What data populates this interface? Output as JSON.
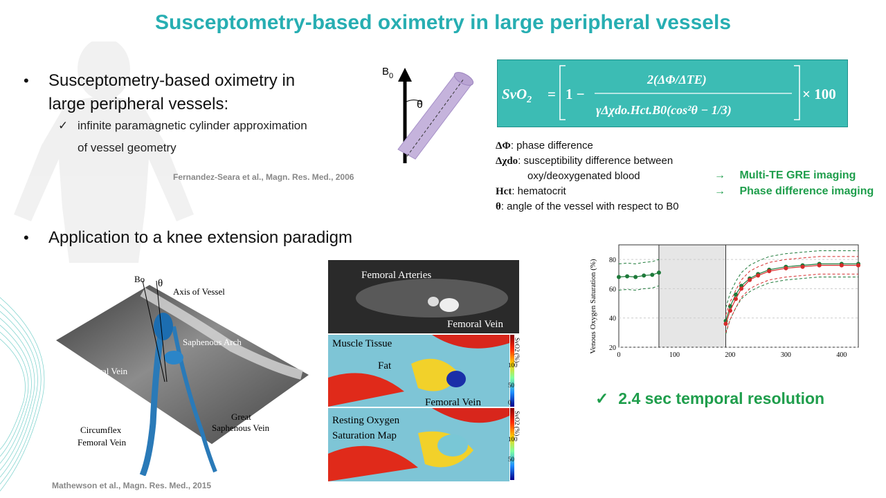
{
  "title": "Susceptometry-based oximetry in large peripheral vessels",
  "bullets": [
    {
      "line1": "Susceptometry-based  oximetry in",
      "line2": "large peripheral vessels:"
    },
    {
      "text": "Application to a knee extension paradigm"
    }
  ],
  "sub_bullet": {
    "line1": "infinite paramagnetic cylinder approximation",
    "line2": "of vessel geometry"
  },
  "citations": {
    "fernandez": "Fernandez-Seara et al., Magn. Res. Med., 2006",
    "mathewson": "Mathewson et al., Magn. Res. Med., 2015"
  },
  "cylinder": {
    "b0": "B",
    "b0_sub": "0",
    "theta": "θ"
  },
  "formula": {
    "lhs": "SvO",
    "lhs_sub": "2",
    "equals": "=",
    "one_minus": "1 −",
    "numerator": "2(ΔΦ/ΔTE)",
    "denominator": "γΔχdo.Hct.B0(cos²θ − 1/3)",
    "times": "× 100"
  },
  "definitions": [
    {
      "sym": "ΔΦ",
      "text": ": phase difference"
    },
    {
      "sym": "Δχdo",
      "text": ": susceptibility difference between"
    },
    {
      "sym": "",
      "text": "oxy/deoxygenated blood"
    },
    {
      "sym": "Hct",
      "text": ": hematocrit"
    },
    {
      "sym": "θ",
      "text": ": angle of the vessel with respect to B0"
    }
  ],
  "techniques": [
    {
      "arrow": "→",
      "label": "Multi-TE GRE imaging"
    },
    {
      "arrow": "→",
      "label": "Phase difference imaging"
    }
  ],
  "vessel_figure": {
    "bo": "Bo",
    "theta": "θ",
    "axis": "Axis of Vessel",
    "saphenous_arch": "Saphenous Arch",
    "femoral_vein": "Femoral Vein",
    "circumflex1": "Circumflex",
    "circumflex2": "Femoral Vein",
    "great1": "Great",
    "great2": "Saphenous Vein"
  },
  "mri_figure": {
    "femoral_arteries": "Femoral Arteries",
    "femoral_vein_top": "Femoral Vein",
    "muscle": "Muscle Tissue",
    "fat": "Fat",
    "femoral_vein_mid": "Femoral Vein",
    "resting1": "Resting Oxygen",
    "resting2": "Saturation Map",
    "cbar_label": "SvO2 (%)",
    "cbar_ticks": [
      "100",
      "50",
      "0"
    ]
  },
  "chart_data": {
    "type": "line",
    "ylabel": "Venous Oxygen Saturation (%)",
    "xlabel": "",
    "xlim": [
      0,
      430
    ],
    "ylim": [
      20,
      90
    ],
    "xticks": [
      "0",
      "100",
      "200",
      "300",
      "400"
    ],
    "yticks": [
      "20",
      "40",
      "60",
      "80"
    ],
    "shaded_interval": [
      72,
      192
    ],
    "series": [
      {
        "color": "#1e7a3a",
        "x": [
          0,
          15,
          30,
          45,
          60,
          72
        ],
        "values": [
          68,
          68.5,
          68,
          69,
          69.5,
          71
        ]
      },
      {
        "color": "#1e7a3a",
        "x": [
          192,
          200,
          210,
          220,
          235,
          250,
          270,
          300,
          330,
          360,
          400,
          430
        ],
        "values": [
          38,
          48,
          56,
          62,
          67,
          70,
          73,
          75,
          76,
          77,
          77,
          77
        ]
      },
      {
        "color": "#d62b2b",
        "x": [
          192,
          200,
          210,
          220,
          235,
          250,
          270,
          300,
          330,
          360,
          400,
          430
        ],
        "values": [
          36,
          45,
          53,
          60,
          66,
          69,
          72,
          74,
          75,
          76,
          76,
          76
        ]
      }
    ],
    "bounds_color": "#1e7a3a"
  },
  "temporal": {
    "check": "✓",
    "text": "2.4 sec temporal resolution"
  }
}
